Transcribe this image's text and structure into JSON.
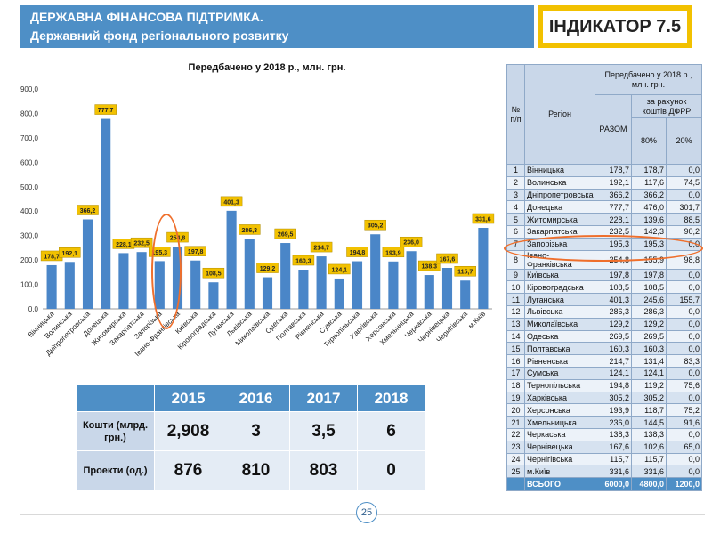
{
  "banner": {
    "line1": "ДЕРЖАВНА ФІНАНСОВА ПІДТРИМКА.",
    "line2": "Державний фонд регіонального розвитку",
    "indicator": "ІНДИКАТОР 7.5"
  },
  "chart_data": {
    "type": "bar",
    "title": "Передбачено у 2018 р., млн. грн.",
    "categories": [
      "Вінницька",
      "Волинська",
      "Дніпропетровська",
      "Донецька",
      "Житомирська",
      "Закарпатська",
      "Запорізька",
      "Івано-Франківська",
      "Київська",
      "Кіровоградська",
      "Луганська",
      "Львівська",
      "Миколаївська",
      "Одеська",
      "Полтавська",
      "Рівненська",
      "Сумська",
      "Тернопільська",
      "Харківська",
      "Херсонська",
      "Хмельницька",
      "Черкаська",
      "Чернівецька",
      "Чернігівська",
      "м.Київ"
    ],
    "values": [
      178.7,
      192.1,
      366.2,
      777.7,
      228.1,
      232.5,
      195.3,
      254.8,
      197.8,
      108.5,
      401.3,
      286.3,
      129.2,
      269.5,
      160.3,
      214.7,
      124.1,
      194.8,
      305.2,
      193.9,
      236.0,
      138.3,
      167.6,
      115.7,
      331.6
    ],
    "labels": [
      "178,7",
      "192,1",
      "366,2",
      "777,7",
      "228,1",
      "232,5",
      "195,3",
      "254,8",
      "197,8",
      "108,5",
      "401,3",
      "286,3",
      "129,2",
      "269,5",
      "160,3",
      "214,7",
      "124,1",
      "194,8",
      "305,2",
      "193,9",
      "236,0",
      "138,3",
      "167,6",
      "115,7",
      "331,6"
    ],
    "yticks": [
      "0,0",
      "100,0",
      "200,0",
      "300,0",
      "400,0",
      "500,0",
      "600,0",
      "700,0",
      "800,0",
      "900,0"
    ],
    "ylim": [
      0,
      900
    ],
    "xlabel": "",
    "ylabel": "",
    "grid": false,
    "highlighted_category": "Запорізька",
    "colors": {
      "bar": "#4a86c8",
      "label_bg": "#f2c100",
      "highlight": "#ef6f2c"
    }
  },
  "stats": {
    "years": [
      "2015",
      "2016",
      "2017",
      "2018"
    ],
    "rows": [
      {
        "label": "Кошти (млрд. грн.)",
        "values": [
          "2,908",
          "3",
          "3,5",
          "6"
        ]
      },
      {
        "label": "Проекти (од.)",
        "values": [
          "876",
          "810",
          "803",
          "0"
        ]
      }
    ]
  },
  "region_table": {
    "headers": {
      "num": "№ п/п",
      "region": "Регіон",
      "planned": "Передбачено у 2018 р., млн. грн.",
      "total": "РАЗОМ",
      "dfrr": "за рахунок коштів ДФРР",
      "p80": "80%",
      "p20": "20%"
    },
    "rows": [
      {
        "num": "1",
        "region": "Вінницька",
        "total": "178,7",
        "p80": "178,7",
        "p20": "0,0"
      },
      {
        "num": "2",
        "region": "Волинська",
        "total": "192,1",
        "p80": "117,6",
        "p20": "74,5"
      },
      {
        "num": "3",
        "region": "Дніпропетровська",
        "total": "366,2",
        "p80": "366,2",
        "p20": "0,0"
      },
      {
        "num": "4",
        "region": "Донецька",
        "total": "777,7",
        "p80": "476,0",
        "p20": "301,7"
      },
      {
        "num": "5",
        "region": "Житомирська",
        "total": "228,1",
        "p80": "139,6",
        "p20": "88,5"
      },
      {
        "num": "6",
        "region": "Закарпатська",
        "total": "232,5",
        "p80": "142,3",
        "p20": "90,2"
      },
      {
        "num": "7",
        "region": "Запорізька",
        "total": "195,3",
        "p80": "195,3",
        "p20": "0,0"
      },
      {
        "num": "8",
        "region": "Івано-Франківська",
        "total": "254,8",
        "p80": "155,9",
        "p20": "98,8"
      },
      {
        "num": "9",
        "region": "Київська",
        "total": "197,8",
        "p80": "197,8",
        "p20": "0,0"
      },
      {
        "num": "10",
        "region": "Кіровоградська",
        "total": "108,5",
        "p80": "108,5",
        "p20": "0,0"
      },
      {
        "num": "11",
        "region": "Луганська",
        "total": "401,3",
        "p80": "245,6",
        "p20": "155,7"
      },
      {
        "num": "12",
        "region": "Львівська",
        "total": "286,3",
        "p80": "286,3",
        "p20": "0,0"
      },
      {
        "num": "13",
        "region": "Миколаївська",
        "total": "129,2",
        "p80": "129,2",
        "p20": "0,0"
      },
      {
        "num": "14",
        "region": "Одеська",
        "total": "269,5",
        "p80": "269,5",
        "p20": "0,0"
      },
      {
        "num": "15",
        "region": "Полтавська",
        "total": "160,3",
        "p80": "160,3",
        "p20": "0,0"
      },
      {
        "num": "16",
        "region": "Рівненська",
        "total": "214,7",
        "p80": "131,4",
        "p20": "83,3"
      },
      {
        "num": "17",
        "region": "Сумська",
        "total": "124,1",
        "p80": "124,1",
        "p20": "0,0"
      },
      {
        "num": "18",
        "region": "Тернопільська",
        "total": "194,8",
        "p80": "119,2",
        "p20": "75,6"
      },
      {
        "num": "19",
        "region": "Харківська",
        "total": "305,2",
        "p80": "305,2",
        "p20": "0,0"
      },
      {
        "num": "20",
        "region": "Херсонська",
        "total": "193,9",
        "p80": "118,7",
        "p20": "75,2"
      },
      {
        "num": "21",
        "region": "Хмельницька",
        "total": "236,0",
        "p80": "144,5",
        "p20": "91,6"
      },
      {
        "num": "22",
        "region": "Черкаська",
        "total": "138,3",
        "p80": "138,3",
        "p20": "0,0"
      },
      {
        "num": "23",
        "region": "Чернівецька",
        "total": "167,6",
        "p80": "102,6",
        "p20": "65,0"
      },
      {
        "num": "24",
        "region": "Чернігівська",
        "total": "115,7",
        "p80": "115,7",
        "p20": "0,0"
      },
      {
        "num": "25",
        "region": "м.Київ",
        "total": "331,6",
        "p80": "331,6",
        "p20": "0,0"
      }
    ],
    "footer": {
      "region": "ВСЬОГО",
      "total": "6000,0",
      "p80": "4800,0",
      "p20": "1200,0"
    }
  },
  "page_number": "25"
}
